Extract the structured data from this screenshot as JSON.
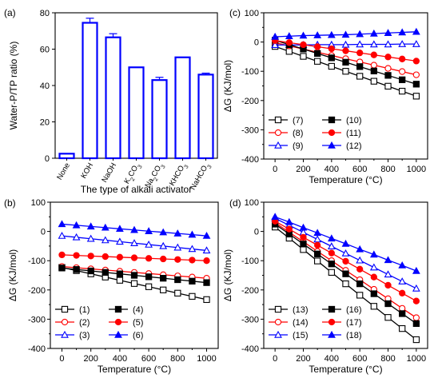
{
  "chart_data": [
    {
      "panel_label": "(a)",
      "type": "bar",
      "xlabel": "The type of alkali activator",
      "ylabel": "Water-P/TP ratio (%)",
      "ylim": [
        0,
        80
      ],
      "yticks": [
        0,
        20,
        40,
        60,
        80
      ],
      "categories": [
        "None",
        "KOH",
        "NaOH",
        "K2CO3",
        "Na2CO3",
        "KHCO3",
        "NaHCO3"
      ],
      "values": [
        2.5,
        74.5,
        66.5,
        50.0,
        43.0,
        55.5,
        46.0
      ],
      "errors": [
        0,
        2.5,
        2.0,
        0,
        1.5,
        0,
        0.8
      ],
      "color": "#0000ff"
    },
    {
      "panel_label": "(b)",
      "type": "line",
      "xlabel": "Temperature (°C)",
      "ylabel": "ΔG (KJ/mol)",
      "xlim": [
        -80,
        1080
      ],
      "ylim": [
        -400,
        100
      ],
      "xticks": [
        0,
        200,
        400,
        600,
        800,
        1000
      ],
      "yticks": [
        100,
        0,
        -100,
        -200,
        -300,
        -400
      ],
      "x": [
        0,
        100,
        200,
        300,
        400,
        500,
        600,
        700,
        800,
        900,
        1000
      ],
      "series": [
        {
          "name": "(1)",
          "marker": "square-open",
          "color": "#000000",
          "values": [
            -123,
            -134,
            -145,
            -156,
            -167,
            -178,
            -189,
            -200,
            -211,
            -222,
            -233
          ]
        },
        {
          "name": "(2)",
          "marker": "circle-open",
          "color": "#ff0000",
          "values": [
            -120,
            -124,
            -128,
            -132,
            -136,
            -140,
            -144,
            -148,
            -152,
            -156,
            -160
          ]
        },
        {
          "name": "(3)",
          "marker": "triangle-open",
          "color": "#0000ff",
          "values": [
            -15,
            -20,
            -25,
            -30,
            -35,
            -40,
            -45,
            -50,
            -55,
            -60,
            -65
          ]
        },
        {
          "name": "(4)",
          "marker": "square-filled",
          "color": "#000000",
          "values": [
            -125,
            -130,
            -135,
            -140,
            -145,
            -150,
            -155,
            -160,
            -165,
            -170,
            -175
          ]
        },
        {
          "name": "(5)",
          "marker": "circle-filled",
          "color": "#ff0000",
          "values": [
            -80,
            -82,
            -84,
            -86,
            -88,
            -90,
            -92,
            -94,
            -96,
            -98,
            -100
          ]
        },
        {
          "name": "(6)",
          "marker": "triangle-filled",
          "color": "#0000ff",
          "values": [
            25,
            21,
            17,
            13,
            9,
            5,
            1,
            -3,
            -7,
            -11,
            -15
          ]
        }
      ],
      "legend": [
        "(1)",
        "(4)",
        "(2)",
        "(5)",
        "(3)",
        "(6)"
      ],
      "legend_position": "bottom-left"
    },
    {
      "panel_label": "(c)",
      "type": "line",
      "xlabel": "Temperature (°C)",
      "ylabel": "ΔG (KJ/mol)",
      "xlim": [
        -80,
        1080
      ],
      "ylim": [
        -400,
        100
      ],
      "xticks": [
        0,
        200,
        400,
        600,
        800,
        1000
      ],
      "yticks": [
        100,
        0,
        -100,
        -200,
        -300,
        -400
      ],
      "x": [
        0,
        100,
        200,
        300,
        400,
        500,
        600,
        700,
        800,
        900,
        1000
      ],
      "series": [
        {
          "name": "(7)",
          "marker": "square-open",
          "color": "#000000",
          "values": [
            -15,
            -32,
            -49,
            -66,
            -83,
            -100,
            -117,
            -134,
            -151,
            -168,
            -185
          ]
        },
        {
          "name": "(8)",
          "marker": "circle-open",
          "color": "#ff0000",
          "values": [
            -2,
            -13,
            -24,
            -35,
            -46,
            -57,
            -68,
            -79,
            -90,
            -101,
            -112
          ]
        },
        {
          "name": "(9)",
          "marker": "triangle-open",
          "color": "#0000ff",
          "values": [
            -10,
            -10,
            -10,
            -9,
            -9,
            -9,
            -8,
            -8,
            -8,
            -7,
            -7
          ]
        },
        {
          "name": "(10)",
          "marker": "square-filled",
          "color": "#000000",
          "values": [
            6,
            -9,
            -24,
            -39,
            -54,
            -69,
            -84,
            -99,
            -114,
            -129,
            -144
          ]
        },
        {
          "name": "(11)",
          "marker": "circle-filled",
          "color": "#ff0000",
          "values": [
            5,
            -2,
            -9,
            -16,
            -23,
            -30,
            -37,
            -44,
            -51,
            -58,
            -65
          ]
        },
        {
          "name": "(12)",
          "marker": "triangle-filled",
          "color": "#0000ff",
          "values": [
            18,
            20,
            22,
            23,
            24,
            25,
            27,
            29,
            31,
            33,
            35
          ]
        }
      ],
      "legend": [
        "(7)",
        "(10)",
        "(8)",
        "(11)",
        "(9)",
        "(12)"
      ],
      "legend_position": "bottom-left"
    },
    {
      "panel_label": "(d)",
      "type": "line",
      "xlabel": "Temperature (°C)",
      "ylabel": "ΔG (KJ/mol)",
      "xlim": [
        -80,
        1080
      ],
      "ylim": [
        -400,
        100
      ],
      "xticks": [
        0,
        200,
        400,
        600,
        800,
        1000
      ],
      "yticks": [
        100,
        0,
        -100,
        -200,
        -300,
        -400
      ],
      "x": [
        0,
        100,
        200,
        300,
        400,
        500,
        600,
        700,
        800,
        900,
        1000
      ],
      "series": [
        {
          "name": "(13)",
          "marker": "square-open",
          "color": "#000000",
          "values": [
            15,
            -23,
            -62,
            -101,
            -140,
            -179,
            -218,
            -256,
            -294,
            -332,
            -370
          ]
        },
        {
          "name": "(14)",
          "marker": "circle-open",
          "color": "#ff0000",
          "values": [
            30,
            -3,
            -35,
            -68,
            -100,
            -133,
            -165,
            -198,
            -230,
            -263,
            -295
          ]
        },
        {
          "name": "(15)",
          "marker": "triangle-open",
          "color": "#0000ff",
          "values": [
            45,
            21,
            -3,
            -27,
            -51,
            -75,
            -99,
            -123,
            -147,
            -171,
            -195
          ]
        },
        {
          "name": "(16)",
          "marker": "square-filled",
          "color": "#000000",
          "values": [
            25,
            -9,
            -43,
            -77,
            -111,
            -145,
            -179,
            -213,
            -247,
            -281,
            -315
          ]
        },
        {
          "name": "(17)",
          "marker": "circle-filled",
          "color": "#ff0000",
          "values": [
            35,
            8,
            -20,
            -47,
            -74,
            -102,
            -129,
            -156,
            -184,
            -211,
            -238
          ]
        },
        {
          "name": "(18)",
          "marker": "triangle-filled",
          "color": "#0000ff",
          "values": [
            50,
            32,
            13,
            -5,
            -24,
            -42,
            -61,
            -79,
            -98,
            -116,
            -135
          ]
        }
      ],
      "legend": [
        "(13)",
        "(16)",
        "(14)",
        "(17)",
        "(15)",
        "(18)"
      ],
      "legend_position": "bottom-left"
    }
  ]
}
